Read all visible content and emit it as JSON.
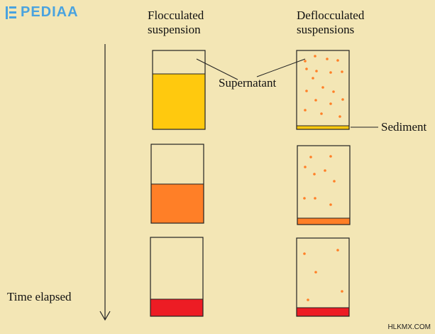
{
  "logo": {
    "text": "PEDIAA",
    "icon": "pediaa-logo-icon"
  },
  "headers": {
    "flocculated": "Flocculated\nsuspension",
    "deflocculated": "Deflocculated\nsuspensions"
  },
  "labels": {
    "supernatant": "Supernatant",
    "sediment": "Sediment",
    "time_elapsed": "Time elapsed"
  },
  "watermark": "HLKMX.COM",
  "colors": {
    "background": "#f3e6b5",
    "stage1": "#ffc90e",
    "stage2": "#ff7f27",
    "stage3": "#ed1c24",
    "dots": "#ff7f27",
    "sediment_thin": "#ffc90e",
    "logo": "#4aa3df"
  }
}
